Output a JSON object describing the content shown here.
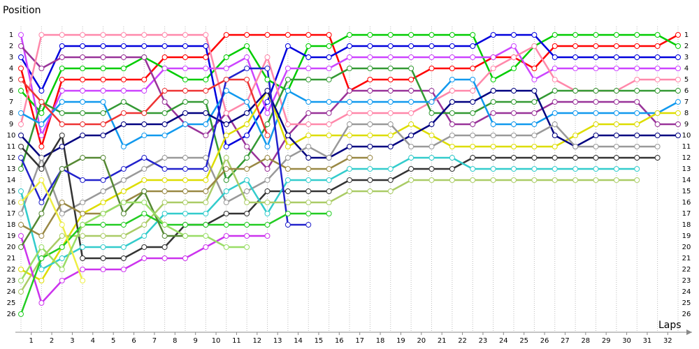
{
  "chart_data": {
    "type": "lap_chart",
    "y_label": "Position",
    "x_label": "Laps",
    "x": [
      0,
      1,
      2,
      3,
      4,
      5,
      6,
      7,
      8,
      9,
      10,
      11,
      12,
      13,
      14,
      15,
      16,
      17,
      18,
      19,
      20,
      21,
      22,
      23,
      24,
      25,
      26,
      27,
      28,
      29,
      30,
      31,
      32
    ],
    "xlim": [
      0,
      32
    ],
    "xticks": [
      {
        "value": 0.5,
        "label": "1"
      },
      {
        "value": 1.5,
        "label": "2"
      },
      {
        "value": 2.5,
        "label": "3"
      },
      {
        "value": 3.5,
        "label": "4"
      },
      {
        "value": 4.5,
        "label": "5"
      },
      {
        "value": 5.5,
        "label": "6"
      },
      {
        "value": 6.5,
        "label": "7"
      },
      {
        "value": 7.5,
        "label": "8"
      },
      {
        "value": 8.5,
        "label": "9"
      },
      {
        "value": 9.5,
        "label": "10"
      },
      {
        "value": 10.5,
        "label": "11"
      },
      {
        "value": 11.5,
        "label": "12"
      },
      {
        "value": 12.5,
        "label": "13"
      },
      {
        "value": 13.5,
        "label": "14"
      },
      {
        "value": 14.5,
        "label": "15"
      },
      {
        "value": 15.5,
        "label": "16"
      },
      {
        "value": 16.5,
        "label": "17"
      },
      {
        "value": 17.5,
        "label": "18"
      },
      {
        "value": 18.5,
        "label": "19"
      },
      {
        "value": 19.5,
        "label": "20"
      },
      {
        "value": 20.5,
        "label": "21"
      },
      {
        "value": 21.5,
        "label": "22"
      },
      {
        "value": 22.5,
        "label": "23"
      },
      {
        "value": 23.5,
        "label": "24"
      },
      {
        "value": 24.5,
        "label": "25"
      },
      {
        "value": 25.5,
        "label": "26"
      },
      {
        "value": 26.5,
        "label": "27"
      },
      {
        "value": 27.5,
        "label": "28"
      },
      {
        "value": 28.5,
        "label": "29"
      },
      {
        "value": 29.5,
        "label": "30"
      },
      {
        "value": 30.5,
        "label": "31"
      },
      {
        "value": 31.5,
        "label": "32"
      }
    ],
    "ylim": [
      1,
      26
    ],
    "y_inverted": true,
    "yticks": [
      1,
      2,
      3,
      4,
      5,
      6,
      7,
      8,
      9,
      10,
      11,
      12,
      13,
      14,
      15,
      16,
      17,
      18,
      19,
      20,
      21,
      22,
      23,
      24,
      25,
      26
    ],
    "grid": true,
    "series": [
      {
        "color": "#ff0000",
        "values": [
          4,
          11,
          5,
          5,
          5,
          5,
          5,
          3,
          3,
          3,
          1,
          1,
          1,
          1,
          1,
          1,
          6,
          5,
          5,
          5,
          4,
          4,
          4,
          3,
          3,
          4,
          2,
          2,
          2,
          2,
          2,
          2,
          1
        ]
      },
      {
        "color": "#00cc00",
        "values": [
          6,
          8,
          4,
          4,
          4,
          4,
          3,
          4,
          5,
          5,
          3,
          2,
          5,
          6,
          2,
          2,
          1,
          1,
          1,
          1,
          1,
          1,
          1,
          5,
          4,
          2,
          1,
          1,
          1,
          1,
          1,
          1,
          2
        ]
      },
      {
        "color": "#0000dd",
        "values": [
          3,
          6,
          2,
          2,
          2,
          2,
          2,
          2,
          2,
          2,
          11,
          10,
          7,
          2,
          3,
          3,
          2,
          2,
          2,
          2,
          2,
          2,
          2,
          1,
          1,
          1,
          3,
          3,
          3,
          3,
          3,
          3,
          3
        ]
      },
      {
        "color": "#cc44ff",
        "values": [
          1,
          10,
          6,
          6,
          6,
          6,
          6,
          4,
          4,
          4,
          4,
          3,
          8,
          4,
          4,
          4,
          3,
          3,
          3,
          3,
          3,
          3,
          3,
          3,
          2,
          5,
          4,
          4,
          4,
          4,
          4,
          4,
          4
        ]
      },
      {
        "color": "#993399",
        "values": [
          2,
          4,
          3,
          3,
          3,
          3,
          3,
          7,
          9,
          10,
          8,
          11,
          13,
          10,
          8,
          8,
          6,
          6,
          6,
          6,
          6,
          9,
          9,
          8,
          8,
          8,
          7,
          7,
          7,
          7,
          7,
          9,
          9
        ]
      },
      {
        "color": "#ff88aa",
        "values": [
          9,
          1,
          1,
          1,
          1,
          1,
          1,
          1,
          1,
          1,
          8,
          7,
          3,
          9,
          9,
          9,
          8,
          8,
          8,
          8,
          7,
          6,
          6,
          4,
          3,
          2,
          5,
          6,
          6,
          6,
          5,
          5,
          5
        ]
      },
      {
        "color": "#339933",
        "values": [
          13,
          7,
          8,
          8,
          8,
          7,
          8,
          8,
          7,
          7,
          14,
          12,
          9,
          5,
          5,
          5,
          4,
          4,
          4,
          4,
          8,
          8,
          8,
          7,
          7,
          7,
          6,
          6,
          6,
          6,
          6,
          6,
          6
        ]
      },
      {
        "color": "#1199ee",
        "values": [
          8,
          9,
          7,
          7,
          7,
          11,
          10,
          10,
          9,
          9,
          6,
          7,
          11,
          6,
          7,
          7,
          7,
          7,
          7,
          7,
          7,
          5,
          5,
          9,
          9,
          9,
          8,
          8,
          8,
          8,
          8,
          8,
          7
        ]
      },
      {
        "color": "#dddd00",
        "values": [
          22,
          23,
          20,
          17,
          16,
          15,
          14,
          14,
          14,
          14,
          10,
          9,
          6,
          11,
          10,
          10,
          10,
          10,
          10,
          9,
          10,
          11,
          11,
          11,
          11,
          11,
          11,
          10,
          9,
          9,
          9,
          8,
          8
        ]
      },
      {
        "color": "#000080",
        "values": [
          10,
          12,
          11,
          10,
          10,
          9,
          9,
          9,
          8,
          8,
          9,
          8,
          6,
          10,
          12,
          12,
          11,
          11,
          11,
          10,
          9,
          7,
          7,
          6,
          6,
          6,
          10,
          11,
          10,
          10,
          10,
          10,
          10
        ]
      },
      {
        "color": "#999999",
        "values": [
          17,
          12,
          17,
          16,
          15,
          14,
          13,
          12,
          12,
          12,
          16,
          15,
          14,
          12,
          11,
          12,
          9,
          9,
          9,
          11,
          11,
          10,
          10,
          10,
          10,
          10,
          9,
          11,
          11,
          11,
          11,
          11,
          null
        ]
      },
      {
        "color": "#333333",
        "values": [
          11,
          13,
          10,
          21,
          21,
          21,
          20,
          20,
          18,
          18,
          17,
          17,
          15,
          15,
          15,
          15,
          14,
          14,
          14,
          13,
          13,
          13,
          12,
          12,
          12,
          12,
          12,
          12,
          12,
          12,
          12,
          12,
          null
        ]
      },
      {
        "color": "#33cccc",
        "values": [
          15,
          22,
          21,
          20,
          20,
          20,
          19,
          17,
          17,
          17,
          15,
          14,
          17,
          14,
          14,
          14,
          13,
          13,
          13,
          12,
          12,
          12,
          13,
          13,
          13,
          13,
          13,
          13,
          13,
          13,
          13,
          null,
          null
        ]
      },
      {
        "color": "#aacc66",
        "values": [
          24,
          21,
          19,
          19,
          19,
          19,
          18,
          16,
          16,
          16,
          12,
          16,
          16,
          16,
          16,
          16,
          15,
          15,
          15,
          14,
          14,
          14,
          14,
          14,
          14,
          14,
          14,
          14,
          14,
          14,
          14,
          null,
          null
        ]
      },
      {
        "color": "#998844",
        "values": [
          18,
          19,
          16,
          17,
          17,
          16,
          15,
          15,
          15,
          15,
          13,
          13,
          12,
          13,
          13,
          13,
          12,
          12,
          null,
          null,
          null,
          null,
          null,
          null,
          null,
          null,
          null,
          null,
          null,
          null,
          null,
          null,
          null
        ]
      },
      {
        "color": "#2222cc",
        "values": [
          12,
          16,
          13,
          14,
          14,
          13,
          12,
          13,
          13,
          13,
          5,
          4,
          4,
          18,
          18,
          null,
          null,
          null,
          null,
          null,
          null,
          null,
          null,
          null,
          null,
          null,
          null,
          null,
          null,
          null,
          null,
          null,
          null
        ]
      },
      {
        "color": "#cc33ee",
        "values": [
          19,
          25,
          23,
          22,
          22,
          22,
          21,
          21,
          21,
          20,
          19,
          19,
          19,
          null,
          null,
          null,
          null,
          null,
          null,
          null,
          null,
          null,
          null,
          null,
          null,
          null,
          null,
          null,
          null,
          null,
          null,
          null,
          null
        ]
      },
      {
        "color": "#22cc22",
        "values": [
          26,
          21,
          20,
          18,
          18,
          18,
          17,
          18,
          18,
          18,
          18,
          18,
          18,
          17,
          17,
          17,
          null,
          null,
          null,
          null,
          null,
          null,
          null,
          null,
          null,
          null,
          null,
          null,
          null,
          null,
          null,
          null,
          null
        ]
      },
      {
        "color": "#ee3333",
        "values": [
          5,
          7,
          9,
          9,
          9,
          8,
          8,
          6,
          6,
          6,
          5,
          5,
          10,
          null,
          null,
          null,
          null,
          null,
          null,
          null,
          null,
          null,
          null,
          null,
          null,
          null,
          null,
          null,
          null,
          null,
          null,
          null,
          null
        ]
      },
      {
        "color": "#558833",
        "values": [
          20,
          17,
          13,
          12,
          12,
          17,
          15,
          19,
          19,
          null,
          null,
          null,
          null,
          null,
          null,
          null,
          null,
          null,
          null,
          null,
          null,
          null,
          null,
          null,
          null,
          null,
          null,
          null,
          null,
          null,
          null,
          null,
          null
        ]
      },
      {
        "color": "#eeee44",
        "values": [
          16,
          14,
          18,
          23,
          null,
          null,
          null,
          null,
          null,
          null,
          null,
          null,
          null,
          null,
          null,
          null,
          null,
          null,
          null,
          null,
          null,
          null,
          null,
          null,
          null,
          null,
          null,
          null,
          null,
          null,
          null,
          null,
          null
        ]
      },
      {
        "color": "#99dd66",
        "values": [
          23,
          20,
          22,
          18,
          17,
          16,
          16,
          18,
          19,
          19,
          20,
          20,
          null,
          null,
          null,
          null,
          null,
          null,
          null,
          null,
          null,
          null,
          null,
          null,
          null,
          null,
          null,
          null,
          null,
          null,
          null,
          null,
          null
        ]
      }
    ]
  }
}
